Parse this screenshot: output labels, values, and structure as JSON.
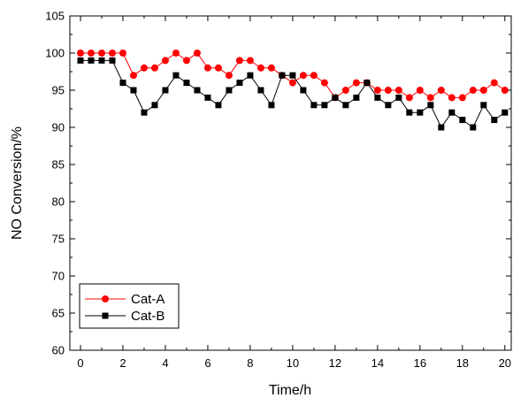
{
  "chart_data": {
    "type": "line",
    "title": "",
    "xlabel": "Time/h",
    "ylabel": "NO Conversion/%",
    "xlim": [
      -0.5,
      20.3
    ],
    "ylim": [
      60,
      105
    ],
    "x_ticks": [
      "0",
      "2",
      "4",
      "6",
      "8",
      "10",
      "12",
      "14",
      "16",
      "18",
      "20"
    ],
    "y_ticks": [
      "60",
      "65",
      "70",
      "75",
      "80",
      "85",
      "90",
      "95",
      "100",
      "105"
    ],
    "grid": false,
    "legend_position": "bottom-left",
    "x": [
      0,
      0.5,
      1,
      1.5,
      2,
      2.5,
      3,
      3.5,
      4,
      4.5,
      5,
      5.5,
      6,
      6.5,
      7,
      7.5,
      8,
      8.5,
      9,
      9.5,
      10,
      10.5,
      11,
      11.5,
      12,
      12.5,
      13,
      13.5,
      14,
      14.5,
      15,
      15.5,
      16,
      16.5,
      17,
      17.5,
      18,
      18.5,
      19,
      19.5,
      20
    ],
    "series": [
      {
        "name": "Cat-A",
        "color": "#ff0000",
        "marker": "circle",
        "values": [
          100,
          100,
          100,
          100,
          100,
          97,
          98,
          98,
          99,
          100,
          99,
          100,
          98,
          98,
          97,
          99,
          99,
          98,
          98,
          97,
          96,
          97,
          97,
          96,
          94,
          95,
          96,
          96,
          95,
          95,
          95,
          94,
          95,
          94,
          95,
          94,
          94,
          95,
          95,
          96,
          95
        ]
      },
      {
        "name": "Cat-B",
        "color": "#000000",
        "marker": "square",
        "values": [
          99,
          99,
          99,
          99,
          96,
          95,
          92,
          93,
          95,
          97,
          96,
          95,
          94,
          93,
          95,
          96,
          97,
          95,
          93,
          97,
          97,
          95,
          93,
          93,
          94,
          93,
          94,
          96,
          94,
          93,
          94,
          92,
          92,
          93,
          90,
          92,
          91,
          90,
          93,
          91,
          92
        ]
      }
    ]
  }
}
